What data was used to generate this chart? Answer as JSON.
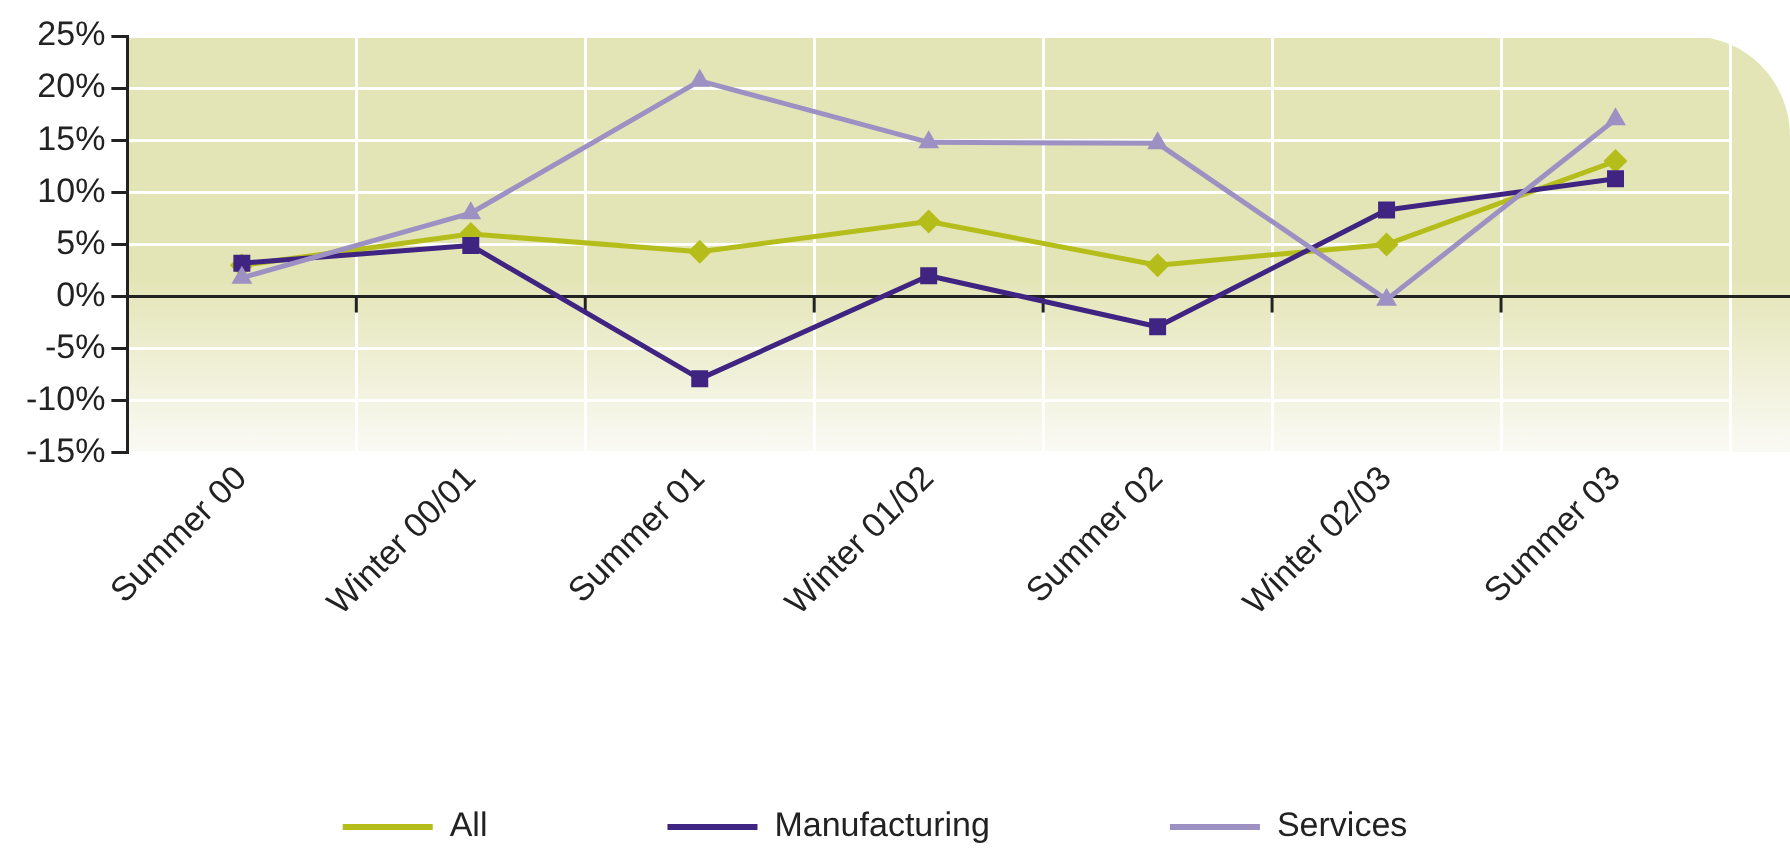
{
  "chart_data": {
    "type": "line",
    "categories": [
      "Summer 00",
      "Winter 00/01",
      "Summer 01",
      "Winter 01/02",
      "Summer 02",
      "Winter 02/03",
      "Summer 03"
    ],
    "series": [
      {
        "name": "All",
        "color": "#b5bd1a",
        "marker": "diamond",
        "values": [
          3.0,
          6.0,
          4.3,
          7.2,
          3.0,
          5.0,
          13.0
        ]
      },
      {
        "name": "Manufacturing",
        "color": "#3f2482",
        "marker": "square",
        "values": [
          3.2,
          4.9,
          -7.9,
          2.0,
          -2.9,
          8.3,
          11.3
        ]
      },
      {
        "name": "Services",
        "color": "#9d91c4",
        "marker": "triangle",
        "values": [
          1.8,
          8.0,
          20.7,
          14.8,
          14.7,
          -0.3,
          17.0
        ]
      }
    ],
    "ylim": [
      -15,
      25
    ],
    "yticks": [
      {
        "value": -15,
        "label": "-15%"
      },
      {
        "value": -10,
        "label": "-10%"
      },
      {
        "value": -5,
        "label": "-5%"
      },
      {
        "value": 0,
        "label": "0%"
      },
      {
        "value": 5,
        "label": "5%"
      },
      {
        "value": 10,
        "label": "10%"
      },
      {
        "value": 15,
        "label": "15%"
      },
      {
        "value": 20,
        "label": "20%"
      },
      {
        "value": 25,
        "label": "25%"
      }
    ],
    "grid": true,
    "legend": "bottom",
    "line_style": "solid"
  }
}
